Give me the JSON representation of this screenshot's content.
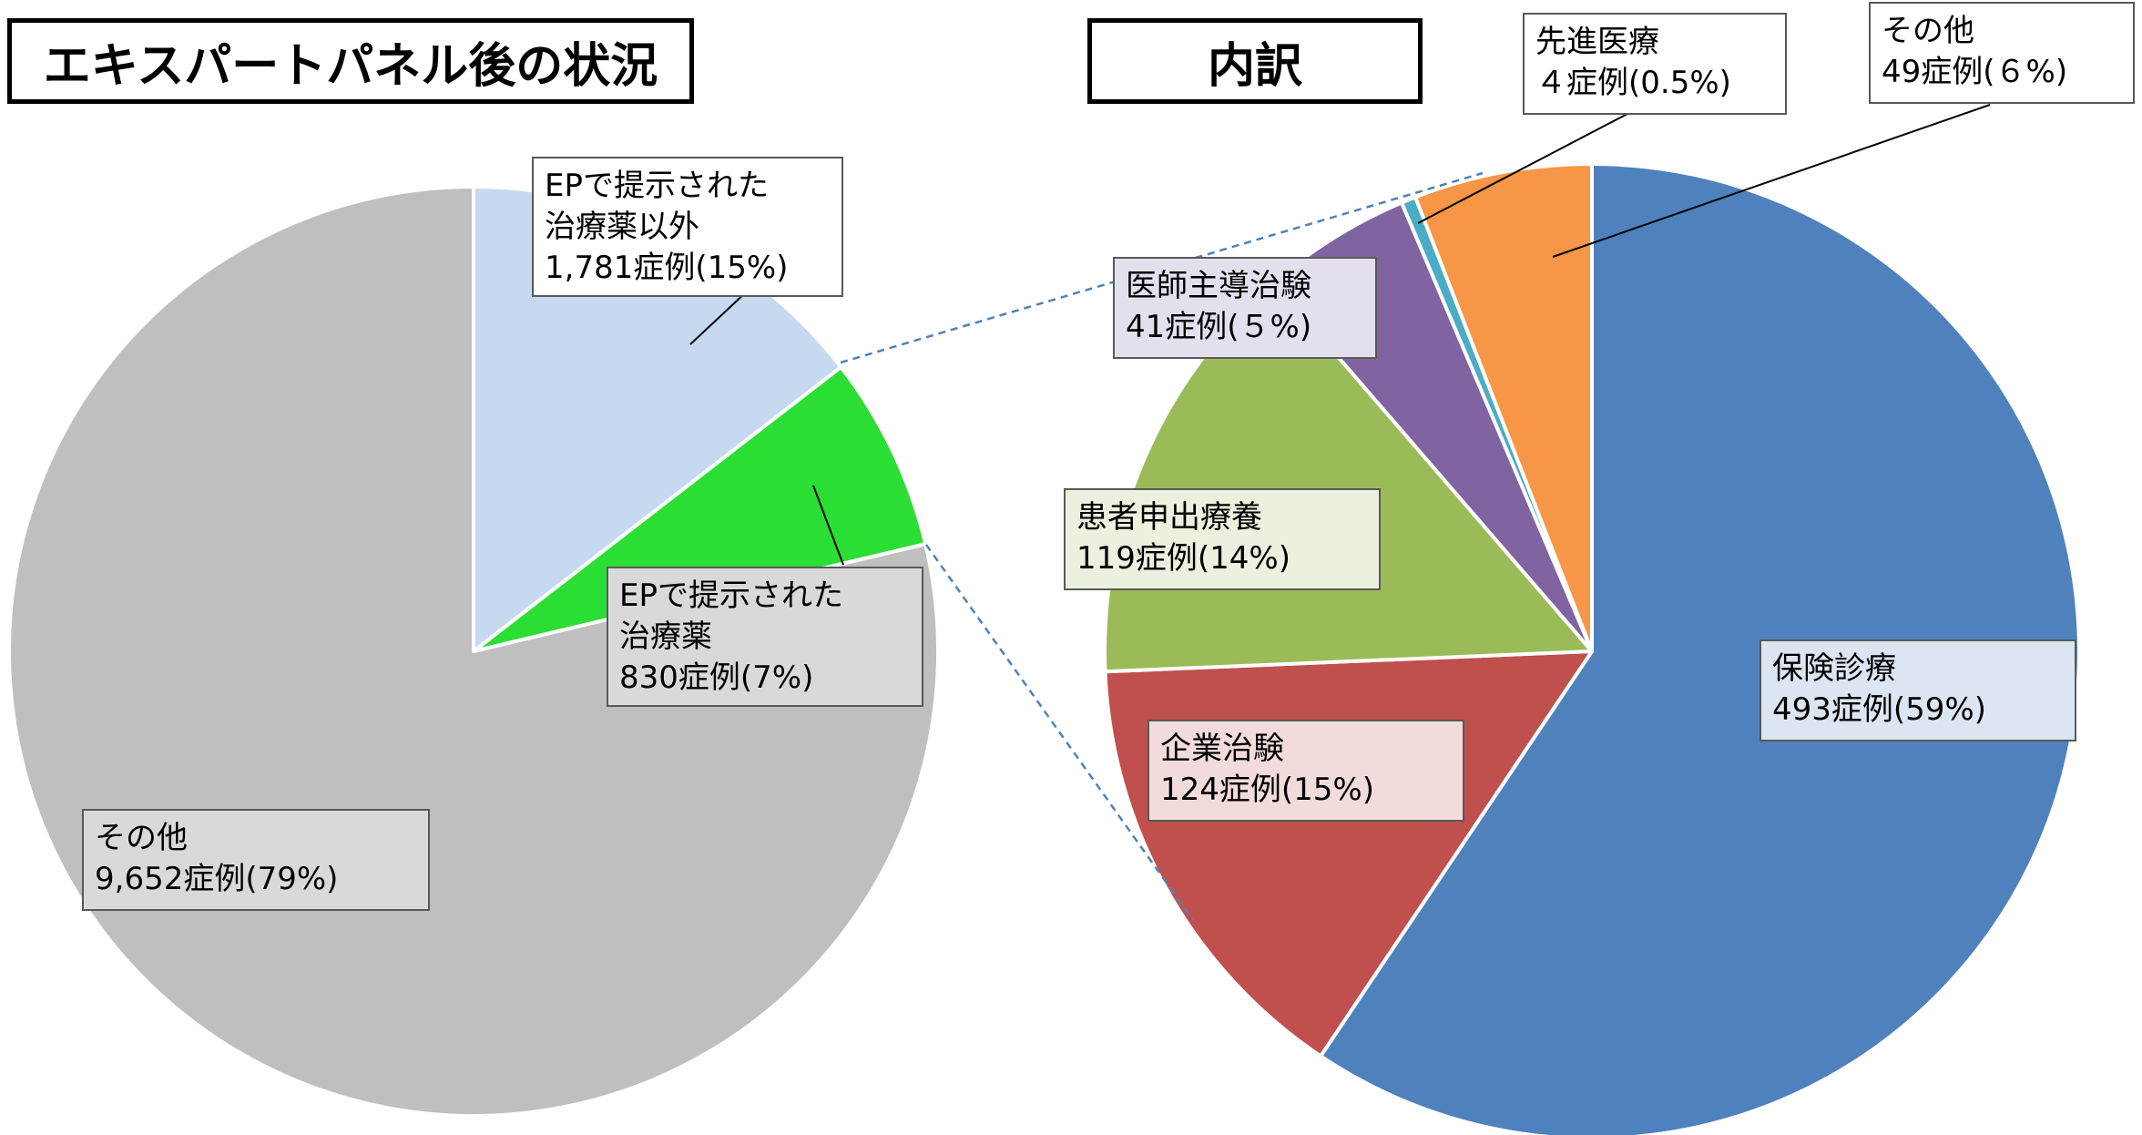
{
  "titles": {
    "left": "エキスパートパネル後の状況",
    "right": "内訳"
  },
  "chart_data": [
    {
      "type": "pie",
      "title": "エキスパートパネル後の状況",
      "slices": [
        {
          "name": "EPで提示された治療薬以外",
          "value": 1781,
          "percent": 15,
          "color": "#C6D9F0"
        },
        {
          "name": "EPで提示された治療薬",
          "value": 830,
          "percent": 7,
          "color": "#2BDE33"
        },
        {
          "name": "その他",
          "value": 9652,
          "percent": 79,
          "color": "#BFBFBF"
        }
      ]
    },
    {
      "type": "pie",
      "title": "内訳",
      "slices": [
        {
          "name": "保険診療",
          "value": 493,
          "percent": 59,
          "color": "#4F81BD"
        },
        {
          "name": "企業治験",
          "value": 124,
          "percent": 15,
          "color": "#C0504D"
        },
        {
          "name": "患者申出療養",
          "value": 119,
          "percent": 14,
          "color": "#9BBB59"
        },
        {
          "name": "医師主導治験",
          "value": 41,
          "percent": 5,
          "color": "#8064A2"
        },
        {
          "name": "先進医療",
          "value": 4,
          "percent": 0.5,
          "color": "#4BACC6"
        },
        {
          "name": "その他",
          "value": 49,
          "percent": 6,
          "color": "#F79646"
        }
      ]
    }
  ],
  "labels": {
    "ep_other": {
      "line1": "EPで提示された",
      "line2": "治療薬以外",
      "line3": "1,781症例(15%)"
    },
    "ep_drug": {
      "line1": "EPで提示された",
      "line2": "治療薬",
      "line3": "830症例(7%)"
    },
    "left_other": {
      "line1": "その他",
      "line2": "9,652症例(79%)"
    },
    "insurance": {
      "line1": "保険診療",
      "line2": "493症例(59%)"
    },
    "company": {
      "line1": "企業治験",
      "line2": "124症例(15%)"
    },
    "patient": {
      "line1": "患者申出療養",
      "line2": "119症例(14%)"
    },
    "doctor": {
      "line1": "医師主導治験",
      "line2": "41症例(５%)"
    },
    "advanced": {
      "line1": "先進医療",
      "line2": "４症例(0.5%)"
    },
    "right_other": {
      "line1": "その他",
      "line2": "49症例(６%)"
    }
  }
}
